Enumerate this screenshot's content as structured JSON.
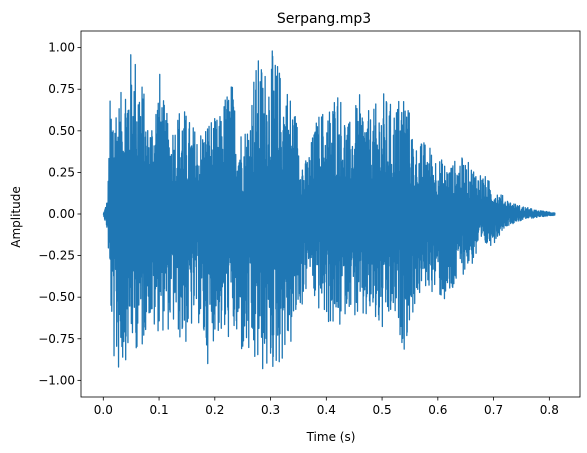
{
  "chart_data": {
    "type": "line",
    "title": "Serpang.mp3",
    "xlabel": "Time (s)",
    "ylabel": "Amplitude",
    "xlim": [
      -0.04,
      0.855
    ],
    "ylim": [
      -1.1,
      1.1
    ],
    "x_ticks": [
      0.0,
      0.1,
      0.2,
      0.3,
      0.4,
      0.5,
      0.6,
      0.7,
      0.8
    ],
    "x_tick_labels": [
      "0.0",
      "0.1",
      "0.2",
      "0.3",
      "0.4",
      "0.5",
      "0.6",
      "0.7",
      "0.8"
    ],
    "y_ticks": [
      -1.0,
      -0.75,
      -0.5,
      -0.25,
      0.0,
      0.25,
      0.5,
      0.75,
      1.0
    ],
    "y_tick_labels": [
      "−1.00",
      "−0.75",
      "−0.50",
      "−0.25",
      "0.00",
      "0.25",
      "0.50",
      "0.75",
      "1.00"
    ],
    "grid": false,
    "duration_s": 0.81,
    "series": [
      {
        "color": "#1f77b4",
        "envelope": {
          "t": [
            0.0,
            0.008,
            0.012,
            0.02,
            0.03,
            0.04,
            0.05,
            0.06,
            0.07,
            0.08,
            0.09,
            0.1,
            0.11,
            0.12,
            0.13,
            0.14,
            0.15,
            0.16,
            0.17,
            0.18,
            0.19,
            0.2,
            0.21,
            0.22,
            0.23,
            0.24,
            0.25,
            0.26,
            0.27,
            0.28,
            0.29,
            0.3,
            0.31,
            0.32,
            0.33,
            0.34,
            0.35,
            0.36,
            0.37,
            0.38,
            0.39,
            0.4,
            0.42,
            0.44,
            0.46,
            0.48,
            0.5,
            0.52,
            0.54,
            0.56,
            0.58,
            0.6,
            0.62,
            0.64,
            0.66,
            0.68,
            0.7,
            0.72,
            0.74,
            0.76,
            0.78,
            0.8,
            0.81
          ],
          "max": [
            0.0,
            0.1,
            0.7,
            0.76,
            0.7,
            0.9,
            1.0,
            0.98,
            0.82,
            0.55,
            0.65,
            0.9,
            0.65,
            0.55,
            0.6,
            0.7,
            0.6,
            0.55,
            0.5,
            0.55,
            0.6,
            0.58,
            0.6,
            0.76,
            0.82,
            0.62,
            0.5,
            0.6,
            0.88,
            0.96,
            0.9,
            1.0,
            0.95,
            0.85,
            0.8,
            0.7,
            0.55,
            0.3,
            0.4,
            0.55,
            0.65,
            0.62,
            0.8,
            0.55,
            0.72,
            0.6,
            0.75,
            0.65,
            0.8,
            0.42,
            0.45,
            0.35,
            0.3,
            0.35,
            0.3,
            0.25,
            0.17,
            0.1,
            0.06,
            0.04,
            0.02,
            0.015,
            0.01
          ],
          "min": [
            0.0,
            -0.12,
            -0.55,
            -0.95,
            -0.98,
            -0.88,
            -0.82,
            -0.82,
            -0.85,
            -0.6,
            -0.75,
            -0.7,
            -0.72,
            -0.7,
            -0.7,
            -0.8,
            -0.8,
            -0.7,
            -0.65,
            -0.85,
            -0.92,
            -0.72,
            -0.75,
            -0.82,
            -0.7,
            -0.85,
            -0.88,
            -0.92,
            -0.98,
            -0.95,
            -1.0,
            -0.97,
            -0.95,
            -0.9,
            -0.85,
            -0.8,
            -0.6,
            -0.55,
            -0.35,
            -0.58,
            -0.6,
            -0.65,
            -0.75,
            -0.55,
            -0.7,
            -0.65,
            -0.75,
            -0.65,
            -0.82,
            -0.55,
            -0.45,
            -0.5,
            -0.58,
            -0.38,
            -0.32,
            -0.22,
            -0.18,
            -0.08,
            -0.05,
            -0.03,
            -0.02,
            -0.01,
            -0.008
          ]
        }
      }
    ]
  }
}
